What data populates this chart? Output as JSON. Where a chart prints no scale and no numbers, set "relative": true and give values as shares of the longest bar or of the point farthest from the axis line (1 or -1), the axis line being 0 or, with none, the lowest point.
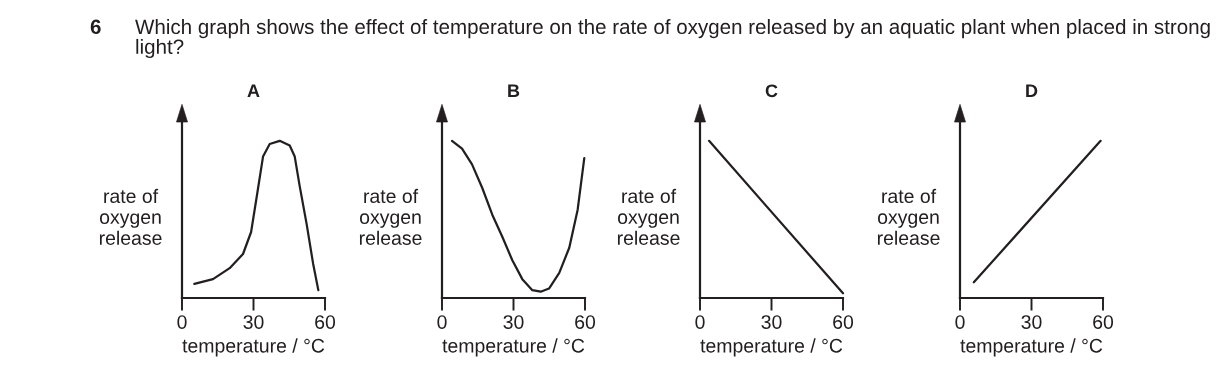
{
  "chart_data": [
    {
      "type": "line",
      "title": "A",
      "xlabel": "temperature / °C",
      "ylabel": "rate of\noxygen\nrelease",
      "relative": true,
      "xlim": [
        0,
        60
      ],
      "xticks": [
        0,
        30,
        60
      ],
      "tick_labels": "x",
      "grid": false,
      "legend": false,
      "annotations": [
        "6",
        "Which graph shows the effect of temperature on the rate of oxygen released by an aquatic plant when placed in strong light?"
      ],
      "series": [
        {
          "color": "#231f20",
          "x": [
            5.2,
            13,
            20,
            25.6,
            29,
            31.2,
            34,
            36.8,
            41,
            45.2,
            47.3,
            49.4,
            52.3,
            55,
            57.2
          ],
          "values": [
            0.09,
            0.12,
            0.19,
            0.28,
            0.42,
            0.63,
            0.9,
            0.98,
            1.0,
            0.97,
            0.9,
            0.71,
            0.47,
            0.22,
            0.05
          ]
        }
      ]
    },
    {
      "type": "line",
      "title": "B",
      "xlabel": "temperature / °C",
      "ylabel": "rate of\noxygen\nrelease",
      "relative": true,
      "xlim": [
        0,
        60
      ],
      "xticks": [
        0,
        30,
        60
      ],
      "tick_labels": "x",
      "grid": false,
      "legend": false,
      "series": [
        {
          "color": "#231f20",
          "x": [
            4.2,
            8.4,
            12.6,
            16.9,
            21.1,
            25.3,
            29.5,
            33.7,
            37.9,
            41.4,
            44.9,
            49.2,
            53.4,
            56.9,
            59.7
          ],
          "values": [
            1.0,
            0.95,
            0.85,
            0.7,
            0.53,
            0.39,
            0.24,
            0.12,
            0.05,
            0.04,
            0.06,
            0.16,
            0.32,
            0.56,
            0.89
          ]
        }
      ]
    },
    {
      "type": "line",
      "title": "C",
      "xlabel": "temperature / °C",
      "ylabel": "rate of\noxygen\nrelease",
      "relative": true,
      "xlim": [
        0,
        60
      ],
      "xticks": [
        0,
        30,
        60
      ],
      "tick_labels": "x",
      "grid": false,
      "legend": false,
      "series": [
        {
          "color": "#231f20",
          "x": [
            3.8,
            60
          ],
          "values": [
            1.0,
            0.03
          ]
        }
      ]
    },
    {
      "type": "line",
      "title": "D",
      "xlabel": "temperature / °C",
      "ylabel": "rate of\noxygen\nrelease",
      "relative": true,
      "xlim": [
        0,
        60
      ],
      "xticks": [
        0,
        30,
        60
      ],
      "tick_labels": "x",
      "grid": false,
      "legend": false,
      "series": [
        {
          "color": "#231f20",
          "x": [
            5.8,
            59
          ],
          "values": [
            0.1,
            1.0
          ]
        }
      ]
    }
  ]
}
